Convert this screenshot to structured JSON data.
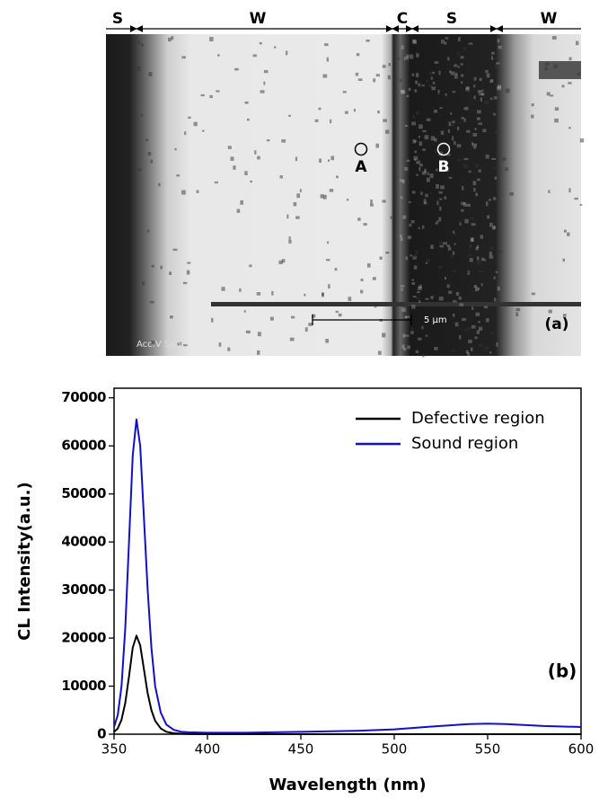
{
  "image_panel": {
    "region_labels": [
      "S",
      "W",
      "C",
      "S",
      "W"
    ],
    "points": [
      "A",
      "B"
    ],
    "panel_label": "(a)",
    "scale_bar": "5 μm",
    "footer": "Acc.V  Spot"
  },
  "chart_data": {
    "type": "line",
    "annotation": "(b)",
    "x_label": "Wavelength (nm)",
    "y_label": "CL Intensity(a.u.)",
    "x": [
      350,
      352,
      354,
      356,
      358,
      360,
      362,
      364,
      366,
      368,
      370,
      372,
      375,
      378,
      382,
      386,
      390,
      400,
      420,
      450,
      480,
      500,
      520,
      540,
      550,
      560,
      580,
      600
    ],
    "series": [
      {
        "name": "Defective region",
        "color": "#000000",
        "values": [
          500,
          1200,
          3000,
          6500,
          12000,
          18000,
          20500,
          18500,
          13500,
          8500,
          5000,
          2800,
          1200,
          500,
          200,
          100,
          50,
          0,
          0,
          0,
          0,
          0,
          0,
          0,
          0,
          0,
          0,
          0
        ]
      },
      {
        "name": "Sound region",
        "color": "#1010c8",
        "values": [
          1500,
          4000,
          10000,
          22000,
          40000,
          58000,
          65500,
          60000,
          45000,
          30000,
          18000,
          10000,
          4500,
          2000,
          900,
          500,
          400,
          300,
          300,
          500,
          700,
          1000,
          1600,
          2100,
          2200,
          2100,
          1700,
          1500
        ]
      }
    ],
    "xlim": [
      350,
      600
    ],
    "xticks": [
      350,
      400,
      450,
      500,
      550,
      600
    ],
    "ylim": [
      0,
      72000
    ],
    "yticks": [
      0,
      10000,
      20000,
      30000,
      40000,
      50000,
      60000,
      70000
    ],
    "legend": "upper right"
  }
}
